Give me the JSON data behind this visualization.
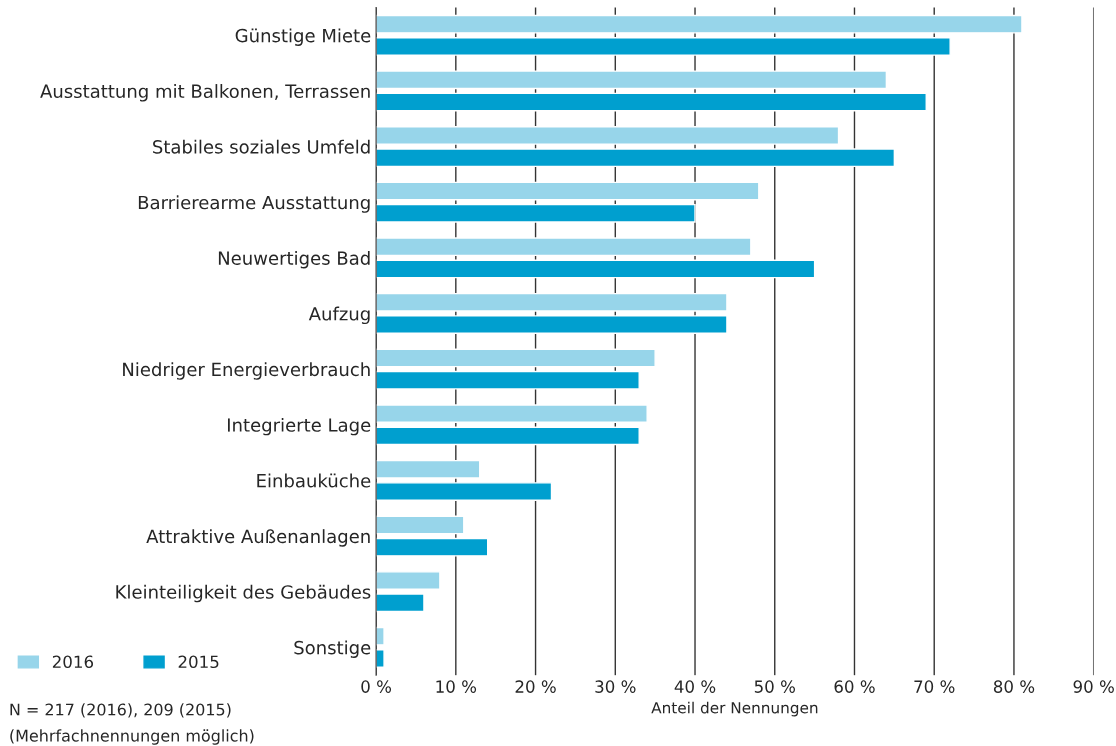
{
  "chart_data": {
    "type": "bar",
    "orientation": "horizontal",
    "xlabel": "Anteil der Nennungen",
    "categories": [
      "Günstige Miete",
      "Ausstattung mit Balkonen, Terrassen",
      "Stabiles soziales Umfeld",
      "Barrierearme Ausstattung",
      "Neuwertiges Bad",
      "Aufzug",
      "Niedriger Energieverbrauch",
      "Integrierte Lage",
      "Einbauküche",
      "Attraktive Außenanlagen",
      "Kleinteiligkeit des Gebäudes",
      "Sonstige"
    ],
    "series": [
      {
        "name": "2016",
        "color": "#97d5ea",
        "values": [
          81,
          64,
          58,
          48,
          47,
          44,
          35,
          34,
          13,
          11,
          8,
          1
        ]
      },
      {
        "name": "2015",
        "color": "#009fcf",
        "values": [
          72,
          69,
          65,
          40,
          55,
          44,
          33,
          33,
          22,
          14,
          6,
          1
        ]
      }
    ],
    "xlim": [
      0,
      90
    ],
    "xticks": [
      {
        "value": 0,
        "label": "0 %"
      },
      {
        "value": 10,
        "label": "10 %"
      },
      {
        "value": 20,
        "label": "20 %"
      },
      {
        "value": 30,
        "label": "30 %"
      },
      {
        "value": 40,
        "label": "40 %"
      },
      {
        "value": 50,
        "label": "50 %"
      },
      {
        "value": 60,
        "label": "60 %"
      },
      {
        "value": 70,
        "label": "70 %"
      },
      {
        "value": 80,
        "label": "80 %"
      },
      {
        "value": 90,
        "label": "90 %"
      }
    ],
    "grid": "x",
    "legend": "bottom left",
    "annotations": [
      "N = 217 (2016), 209 (2015)",
      "(Mehrfachnennungen möglich)"
    ]
  }
}
